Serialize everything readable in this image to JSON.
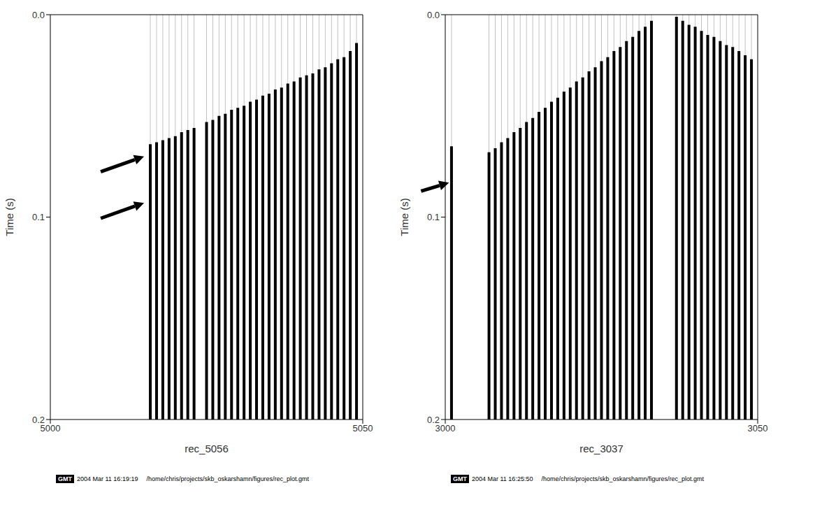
{
  "chart_data": [
    {
      "type": "line",
      "xlabel": "rec_5056",
      "ylabel": "Time (s)",
      "color": "#000000",
      "xlim": [
        5000,
        5050
      ],
      "xticks": [
        5000,
        5050
      ],
      "ylim": [
        0,
        0.2
      ],
      "yticks": [
        {
          "value": 0,
          "label": "0.0"
        },
        {
          "value": 0.1,
          "label": "0.1"
        },
        {
          "value": 0.2,
          "label": "0.2"
        }
      ],
      "x": [
        5016,
        5017,
        5018,
        5019,
        5020,
        5021,
        5022,
        5023,
        5025,
        5026,
        5027,
        5028,
        5029,
        5030,
        5031,
        5032,
        5033,
        5034,
        5035,
        5036,
        5037,
        5038,
        5039,
        5040,
        5041,
        5042,
        5043,
        5044,
        5045,
        5046,
        5047,
        5048,
        5049
      ],
      "values": [
        0.064,
        0.063,
        0.062,
        0.061,
        0.06,
        0.058,
        0.057,
        0.056,
        0.053,
        0.052,
        0.05,
        0.049,
        0.047,
        0.046,
        0.045,
        0.043,
        0.042,
        0.04,
        0.039,
        0.037,
        0.036,
        0.034,
        0.033,
        0.031,
        0.03,
        0.029,
        0.027,
        0.026,
        0.024,
        0.022,
        0.021,
        0.018,
        0.014
      ],
      "arrows": [
        {
          "x": 5015,
          "y": 0.07
        },
        {
          "x": 5015,
          "y": 0.093
        }
      ],
      "footer": {
        "badge": "GMT",
        "timestamp": "2004 Mar 11 16:19:19",
        "path": "/home/chris/projects/skb_oskarshamn/figures/rec_plot.gmt"
      }
    },
    {
      "type": "line",
      "xlabel": "rec_3037",
      "ylabel": "Time (s)",
      "color": "#000000",
      "xlim": [
        3000,
        3050
      ],
      "xticks": [
        3000,
        3050
      ],
      "ylim": [
        0,
        0.2
      ],
      "yticks": [
        {
          "value": 0,
          "label": "0.0"
        },
        {
          "value": 0.1,
          "label": "0.1"
        },
        {
          "value": 0.2,
          "label": "0.2"
        }
      ],
      "x": [
        3001,
        3007,
        3008,
        3009,
        3010,
        3011,
        3012,
        3013,
        3014,
        3015,
        3016,
        3017,
        3018,
        3019,
        3020,
        3021,
        3022,
        3023,
        3024,
        3025,
        3026,
        3027,
        3028,
        3029,
        3030,
        3031,
        3032,
        3033,
        3037,
        3038,
        3039,
        3040,
        3041,
        3042,
        3043,
        3044,
        3045,
        3046,
        3047,
        3048,
        3049
      ],
      "values": [
        0.065,
        0.068,
        0.066,
        0.063,
        0.061,
        0.058,
        0.056,
        0.053,
        0.051,
        0.048,
        0.046,
        0.043,
        0.041,
        0.038,
        0.036,
        0.033,
        0.031,
        0.028,
        0.026,
        0.023,
        0.021,
        0.018,
        0.016,
        0.013,
        0.011,
        0.008,
        0.006,
        0.003,
        0.001,
        0.003,
        0.005,
        0.006,
        0.008,
        0.01,
        0.011,
        0.013,
        0.015,
        0.016,
        0.018,
        0.02,
        0.022
      ],
      "arrows": [
        {
          "x": 3000.6,
          "y": 0.083
        }
      ],
      "footer": {
        "badge": "GMT",
        "timestamp": "2004 Mar 11 16:25:50",
        "path": "/home/chris/projects/skb_oskarshamn/figures/rec_plot.gmt"
      }
    }
  ]
}
